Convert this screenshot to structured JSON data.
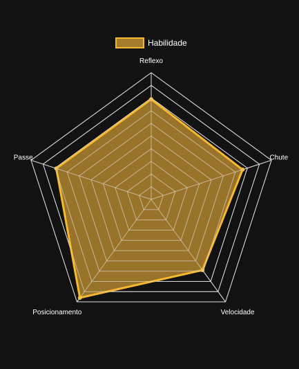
{
  "chart_data": {
    "type": "radar",
    "categories": [
      "Reflexo",
      "Chute",
      "Velocidade",
      "Posicionamento",
      "Passe"
    ],
    "series": [
      {
        "name": "Habilidade",
        "values": [
          79,
          76,
          69,
          96,
          79
        ]
      }
    ],
    "rlim": [
      0,
      100
    ],
    "grid_rings": 10,
    "legend_position": "top-center",
    "colors": {
      "background": "#121212",
      "grid": "#dcdcdc",
      "fill": "#a67c2e",
      "stroke": "#f5b82e",
      "label": "#ffffff"
    }
  }
}
